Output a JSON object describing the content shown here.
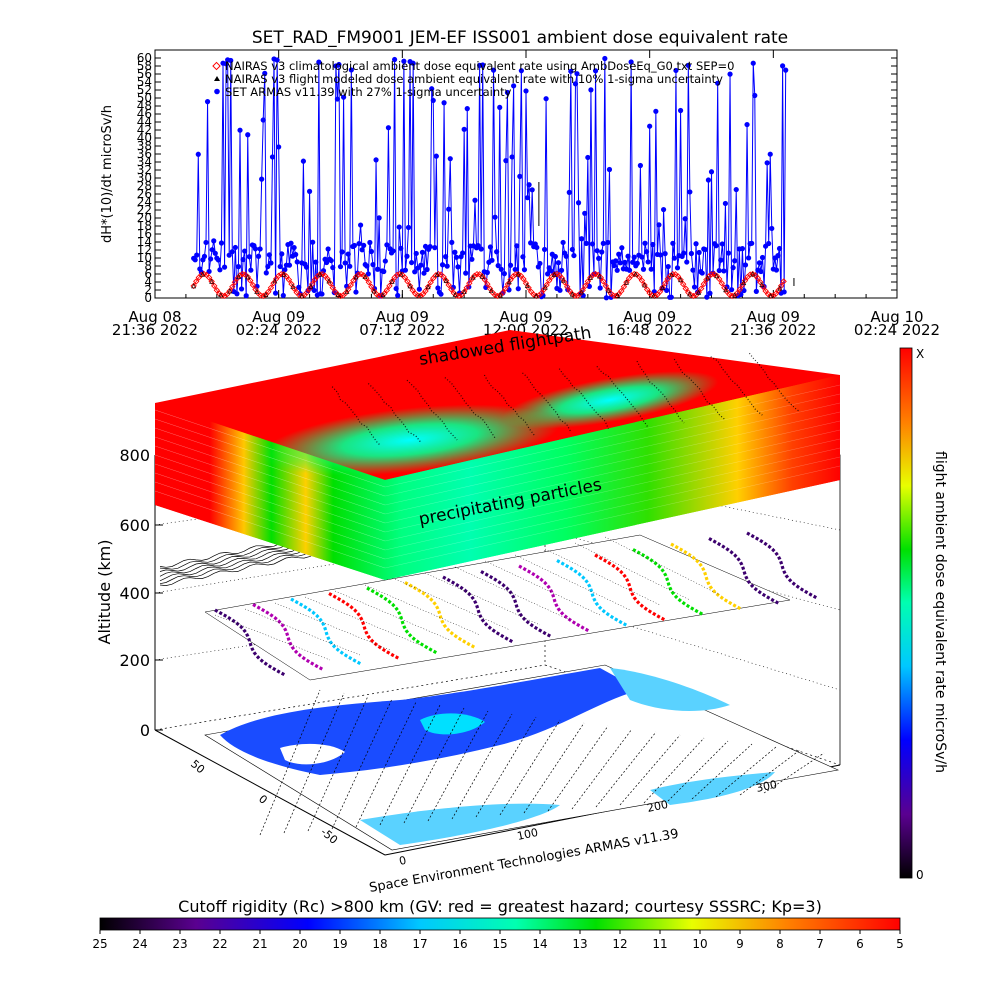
{
  "chart_data": [
    {
      "type": "line",
      "title": "SET_RAD_FM9001  JEM-EF ISS001 ambient dose equivalent rate",
      "ylabel": "dH*(10)/dt microSv/h",
      "ylim": [
        0,
        60
      ],
      "y_ticks": [
        "0",
        "2",
        "4",
        "6",
        "8",
        "10",
        "12",
        "14",
        "16",
        "18",
        "20",
        "22",
        "24",
        "26",
        "28",
        "30",
        "32",
        "34",
        "36",
        "38",
        "40",
        "42",
        "44",
        "46",
        "48",
        "50",
        "52",
        "54",
        "56",
        "58",
        "60"
      ],
      "x_ticks": [
        {
          "line1": "Aug 08",
          "line2": "21:36 2022"
        },
        {
          "line1": "Aug 09",
          "line2": "02:24 2022"
        },
        {
          "line1": "Aug 09",
          "line2": "07:12 2022"
        },
        {
          "line1": "Aug 09",
          "line2": "12:00 2022"
        },
        {
          "line1": "Aug 09",
          "line2": "16:48 2022"
        },
        {
          "line1": "Aug 09",
          "line2": "21:36 2022"
        },
        {
          "line1": "Aug 10",
          "line2": "02:24 2022"
        }
      ],
      "legend_position": "top-left",
      "series": [
        {
          "name": "NAIRAS v3 climatological ambient dose equivalent rate using AmbDoseEq_G0.txt SEP=0",
          "color": "#ff0000",
          "marker": "diamond",
          "t_hours": [
            1.5,
            24.5
          ],
          "min": 0.5,
          "max": 6
        },
        {
          "name": "NAIRAS v3 flight modeled dose ambient equivalent rate with 10% 1-sigma uncertainty",
          "color": "#000000",
          "marker": "triangle",
          "t_hours": [
            1.5,
            24.5
          ],
          "min": 0.5,
          "max": 6
        },
        {
          "name": "SET ARMAS v11.39 with 27% 1-sigma uncertainty",
          "color": "#0000ff",
          "marker": "circle",
          "t_hours": [
            1.5,
            24.5
          ],
          "baseline": 6,
          "peak_max": 60
        }
      ]
    },
    {
      "type": "heatmap",
      "title": "",
      "zlabel": "Altitude (km)",
      "z_ticks": [
        "0",
        "200",
        "400",
        "600",
        "800"
      ],
      "lat_ticks": [
        "50",
        "0",
        "-50"
      ],
      "lon_ticks": [
        "0",
        "100",
        "200",
        "300"
      ],
      "layer_labels": [
        "shadowed flightpath",
        "precipitating particles"
      ],
      "credit": "Space Environment Technologies ARMAS v11.39"
    },
    {
      "type": "heatmap",
      "colorbar": "vertical",
      "label": "flight ambient dose equivalent rate microSv/h",
      "top_label": "X",
      "bottom_label": "0"
    },
    {
      "type": "heatmap",
      "colorbar": "horizontal",
      "title": "Cutoff rigidity (Rc) >800 km (GV: red = greatest hazard; courtesy SSSRC; Kp=3)",
      "tick_labels": [
        "25",
        "24",
        "23",
        "22",
        "21",
        "20",
        "19",
        "18",
        "17",
        "16",
        "15",
        "14",
        "13",
        "12",
        "11",
        "10",
        "9",
        "8",
        "7",
        "6",
        "5"
      ]
    }
  ]
}
